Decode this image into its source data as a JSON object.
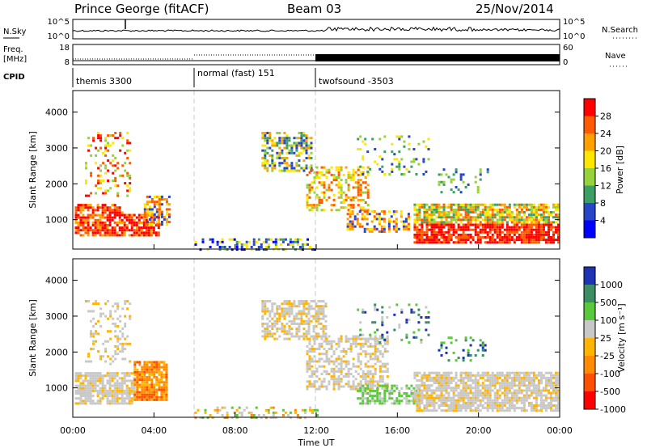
{
  "header": {
    "station": "Prince George (fitACF)",
    "beam": "Beam 03",
    "date": "25/Nov/2014"
  },
  "panels": {
    "nsky_label": "N.Sky",
    "nsky_ticks": [
      "10^5",
      "10^0"
    ],
    "nsearch_label": "N.Search",
    "nsearch_ticks": [
      "10^5",
      "10^0"
    ],
    "freq_label": "Freq.",
    "freq_unit": "[MHz]",
    "freq_ticks": [
      "18",
      "8"
    ],
    "nave_label": "Nave",
    "nave_ticks": [
      "60",
      "0"
    ],
    "cpid_label": "CPID",
    "cpid_segments": [
      {
        "label": "themis 3300",
        "start": "00:00",
        "end": "06:00"
      },
      {
        "label": "normal (fast) 151",
        "start": "06:00",
        "end": "12:00"
      },
      {
        "label": "twofsound -3503",
        "start": "12:00",
        "end": "24:00"
      }
    ]
  },
  "chart_data": [
    {
      "type": "heatmap",
      "name": "power",
      "ylabel": "Slant Range [km]",
      "ylim": [
        180,
        4600
      ],
      "yticks": [
        1000,
        2000,
        3000,
        4000
      ],
      "colorbar_label": "Power [dB]",
      "colorbar_ticks": [
        "28",
        "24",
        "20",
        "16",
        "12",
        "8",
        "4"
      ],
      "colors": [
        "#ff0000",
        "#ff5a00",
        "#ffa000",
        "#ffe600",
        "#96d23c",
        "#3ca064",
        "#2846c8",
        "#0000ff"
      ]
    },
    {
      "type": "heatmap",
      "name": "velocity",
      "ylabel": "Slant Range [km]",
      "xlabel": "Time UT",
      "ylim": [
        180,
        4600
      ],
      "yticks": [
        1000,
        2000,
        3000,
        4000
      ],
      "xticks": [
        "00:00",
        "04:00",
        "08:00",
        "12:00",
        "16:00",
        "20:00",
        "00:00"
      ],
      "colorbar_label": "Velocity [m s⁻¹]",
      "colorbar_ticks": [
        "1000",
        "500",
        "100",
        "25",
        "-25",
        "-100",
        "-500",
        "-1000"
      ],
      "colors": [
        "#1e32b4",
        "#3c8c64",
        "#5ac83c",
        "#c8c8c8",
        "#ffb400",
        "#ff8c00",
        "#ff5000",
        "#ff0000"
      ]
    }
  ]
}
